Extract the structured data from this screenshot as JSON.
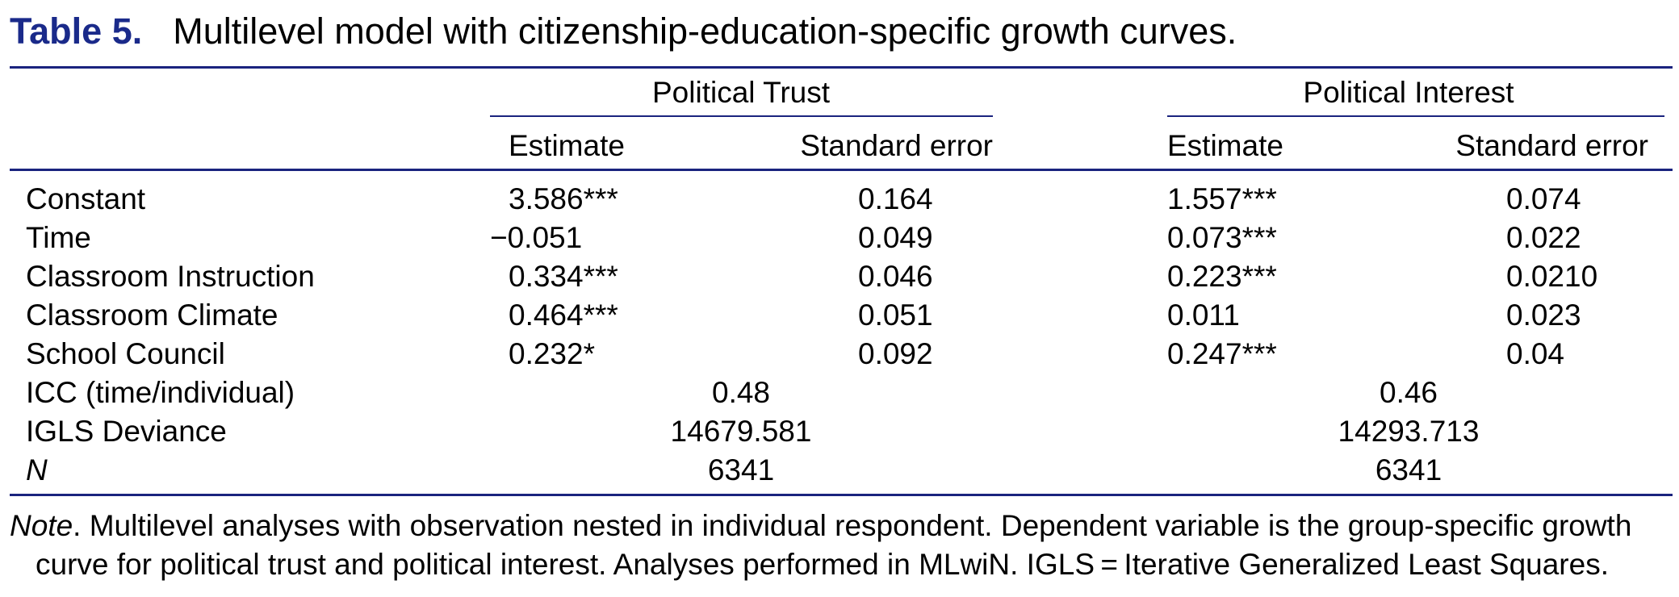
{
  "table": {
    "label": "Table 5.",
    "title": "Multilevel model with citizenship-education-specific growth curves.",
    "groups": [
      "Political Trust",
      "Political Interest"
    ],
    "subheaders": [
      "Estimate",
      "Standard error",
      "Estimate",
      "Standard error"
    ],
    "rows": [
      {
        "label": "Constant",
        "pt_est": "3.586***",
        "pt_se": "0.164",
        "pi_est": "1.557***",
        "pi_se": "0.074"
      },
      {
        "label": "Time",
        "pt_est": "−0.051",
        "pt_se": "0.049",
        "pi_est": "0.073***",
        "pi_se": "0.022"
      },
      {
        "label": "Classroom Instruction",
        "pt_est": "0.334***",
        "pt_se": "0.046",
        "pi_est": "0.223***",
        "pi_se": "0.0210"
      },
      {
        "label": "Classroom Climate",
        "pt_est": "0.464***",
        "pt_se": "0.051",
        "pi_est": "0.011",
        "pi_se": "0.023"
      },
      {
        "label": "School Council",
        "pt_est": "0.232*",
        "pt_se": "0.092",
        "pi_est": "0.247***",
        "pi_se": "0.04"
      }
    ],
    "summary_rows": [
      {
        "label": "ICC (time/individual)",
        "pt": "0.48",
        "pi": "0.46"
      },
      {
        "label": "IGLS Deviance",
        "pt": "14679.581",
        "pi": "14293.713"
      },
      {
        "label": "N",
        "pt": "6341",
        "pi": "6341"
      }
    ],
    "note_label": "Note",
    "note_line1": ". Multilevel analyses with observation nested in individual respondent. Dependent variable is the group-specific growth",
    "note_line2": "curve for political trust and political interest. Analyses performed in MLwiN. IGLS = Iterative Generalized Least Squares."
  }
}
